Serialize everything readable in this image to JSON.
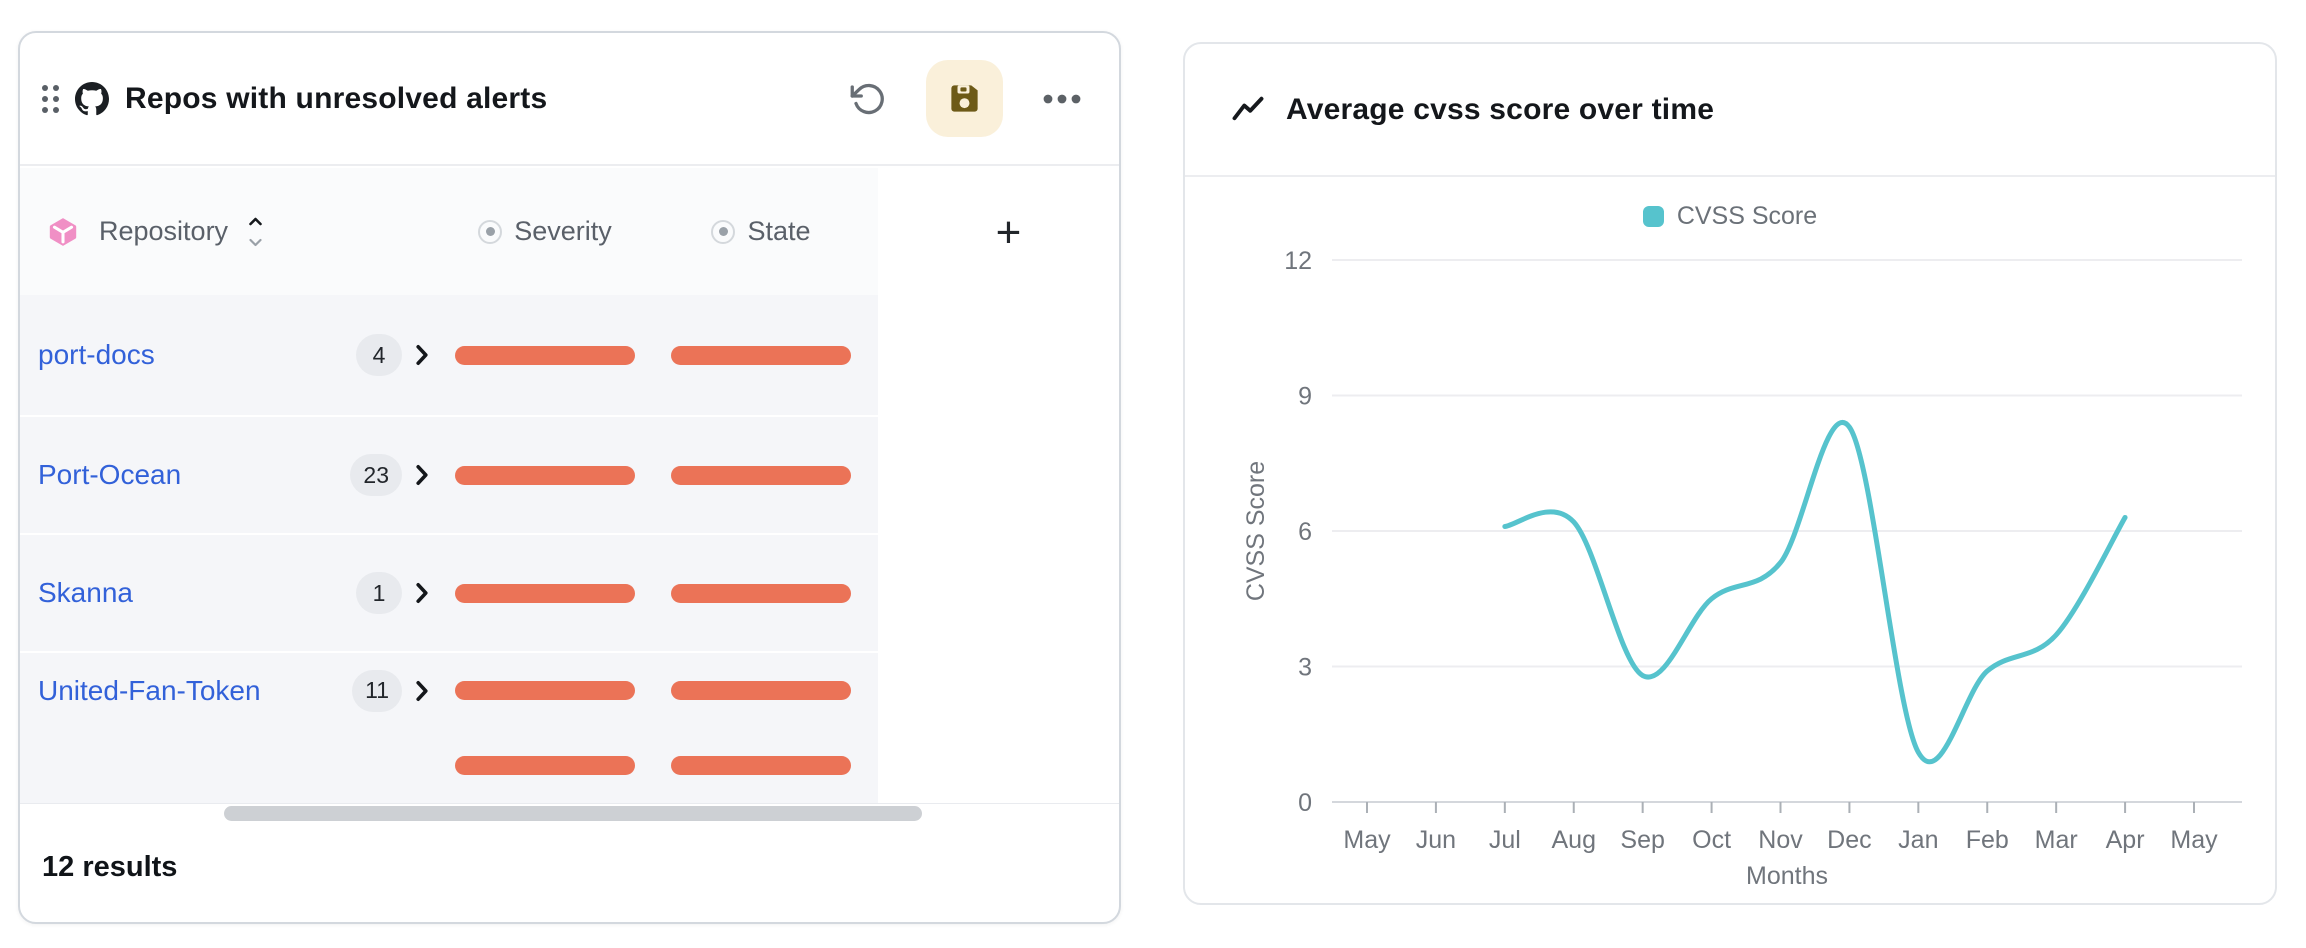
{
  "left_panel": {
    "title": "Repos with unresolved alerts",
    "columns": {
      "repository": "Repository",
      "severity": "Severity",
      "state": "State",
      "add": "+"
    },
    "rows": [
      {
        "name": "port-docs",
        "count": "4",
        "bar_lines": 1
      },
      {
        "name": "Port-Ocean",
        "count": "23",
        "bar_lines": 1
      },
      {
        "name": "Skanna",
        "count": "1",
        "bar_lines": 1
      },
      {
        "name": "United-Fan-Token",
        "count": "11",
        "bar_lines": 2
      }
    ],
    "results": "12 results"
  },
  "right_panel": {
    "title": "Average cvss score over time"
  },
  "chart_data": {
    "type": "line",
    "title": "Average cvss score over time",
    "smooth": true,
    "grid": true,
    "legend": [
      "CVSS Score"
    ],
    "legend_position": "top",
    "x_axis_labels": [
      "May",
      "Jun",
      "Jul",
      "Aug",
      "Sep",
      "Oct",
      "Nov",
      "Dec",
      "Jan",
      "Feb",
      "Mar",
      "Apr",
      "May"
    ],
    "series": [
      {
        "name": "CVSS Score",
        "color": "#56c3cd",
        "months": [
          "Jul",
          "Aug",
          "Sep",
          "Oct",
          "Nov",
          "Dec",
          "Jan",
          "Feb",
          "Mar",
          "Apr"
        ],
        "values": [
          6.1,
          6.2,
          2.8,
          4.5,
          5.3,
          8.3,
          1.1,
          2.9,
          3.7,
          6.3
        ]
      }
    ],
    "xlabel": "Months",
    "ylabel": "CVSS Score",
    "yticks": [
      0,
      3,
      6,
      9,
      12
    ],
    "ylim": [
      0,
      12
    ]
  },
  "colors": {
    "redaction_bar": "#eb7357",
    "repo_link": "#3261d9",
    "line": "#56c3cd",
    "save_button_bg": "#faf0da",
    "save_icon": "#6d5a17",
    "package_icon": "#f08fc5",
    "axis_text": "#70757c",
    "gridline": "#ededf0"
  }
}
